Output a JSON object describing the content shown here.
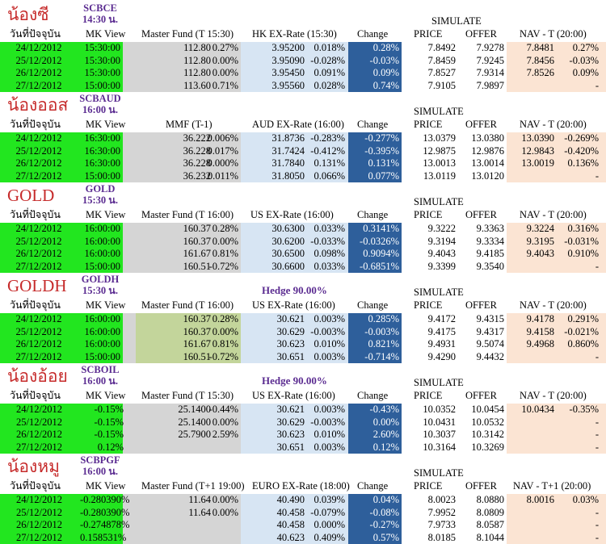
{
  "page_title_top": "SCBCE",
  "sections": [
    {
      "title": "น้องซี",
      "code": "SCBCE",
      "time": "14:30 น.",
      "hedge": "",
      "simulate": "SIMULATE",
      "headers": {
        "date": "วันที่ปัจจุบัน",
        "mk": "MK View",
        "fund": "Master Fund (T 15:30)",
        "fx": "HK EX-Rate (15:30)",
        "change": "Change",
        "price": "PRICE",
        "offer": "OFFER",
        "nav": "NAV - T (20:00)"
      },
      "rows": [
        {
          "date": "24/12/2012",
          "mk": "15:30:00",
          "fund": "112.80",
          "fund_pct": "0.27%",
          "fx": "3.95200",
          "fx_pct": "0.018%",
          "change": "0.28%",
          "price": "7.8492",
          "offer": "7.9278",
          "nav": "7.8481",
          "nav_pct": "0.27%"
        },
        {
          "date": "25/12/2012",
          "mk": "15:30:00",
          "fund": "112.80",
          "fund_pct": "0.00%",
          "fx": "3.95090",
          "fx_pct": "-0.028%",
          "change": "-0.03%",
          "price": "7.8459",
          "offer": "7.9245",
          "nav": "7.8456",
          "nav_pct": "-0.03%"
        },
        {
          "date": "26/12/2012",
          "mk": "15:30:00",
          "fund": "112.80",
          "fund_pct": "0.00%",
          "fx": "3.95450",
          "fx_pct": "0.091%",
          "change": "0.09%",
          "price": "7.8527",
          "offer": "7.9314",
          "nav": "7.8526",
          "nav_pct": "0.09%"
        },
        {
          "date": "27/12/2012",
          "mk": "15:00:00",
          "fund": "113.60",
          "fund_pct": "0.71%",
          "fx": "3.95560",
          "fx_pct": "0.028%",
          "change": "0.74%",
          "price": "7.9105",
          "offer": "7.9897",
          "nav": "",
          "nav_pct": "-"
        }
      ]
    },
    {
      "title": "น้องออส",
      "code": "SCBAUD",
      "time": "16:00 น.",
      "hedge": "",
      "simulate": "SIMULATE",
      "headers": {
        "date": "วันที่ปัจจุบัน",
        "mk": "MK View",
        "fund": "MMF (T-1)",
        "fx": "AUD EX-Rate (16:00)",
        "change": "Change",
        "price": "PRICE",
        "offer": "OFFER",
        "nav": "NAV - T (20:00)"
      },
      "rows": [
        {
          "date": "24/12/2012",
          "mk": "16:30:00",
          "fund": "36.222",
          "fund_pct": "0.006%",
          "fx": "31.8736",
          "fx_pct": "-0.283%",
          "change": "-0.277%",
          "price": "13.0379",
          "offer": "13.0380",
          "nav": "13.0390",
          "nav_pct": "-0.269%"
        },
        {
          "date": "25/12/2012",
          "mk": "16:30:00",
          "fund": "36.228",
          "fund_pct": "0.017%",
          "fx": "31.7424",
          "fx_pct": "-0.412%",
          "change": "-0.395%",
          "price": "12.9875",
          "offer": "12.9876",
          "nav": "12.9843",
          "nav_pct": "-0.420%"
        },
        {
          "date": "26/12/2012",
          "mk": "16:30:00",
          "fund": "36.228",
          "fund_pct": "0.000%",
          "fx": "31.7840",
          "fx_pct": "0.131%",
          "change": "0.131%",
          "price": "13.0013",
          "offer": "13.0014",
          "nav": "13.0019",
          "nav_pct": "0.136%"
        },
        {
          "date": "27/12/2012",
          "mk": "15:00:00",
          "fund": "36.232",
          "fund_pct": "0.011%",
          "fx": "31.8050",
          "fx_pct": "0.066%",
          "change": "0.077%",
          "price": "13.0119",
          "offer": "13.0120",
          "nav": "",
          "nav_pct": "-"
        }
      ]
    },
    {
      "title": "GOLD",
      "code": "GOLD",
      "time": "15:30 น.",
      "hedge": "",
      "simulate": "SIMULATE",
      "headers": {
        "date": "วันที่ปัจจุบัน",
        "mk": "MK View",
        "fund": "Master Fund (T 16:00)",
        "fx": "US EX-Rate (16:00)",
        "change": "Change",
        "price": "PRICE",
        "offer": "OFFER",
        "nav": "NAV - T (20:00)"
      },
      "rows": [
        {
          "date": "24/12/2012",
          "mk": "16:00:00",
          "fund": "160.37",
          "fund_pct": "0.28%",
          "fx": "30.6300",
          "fx_pct": "0.033%",
          "change": "0.3141%",
          "price": "9.3222",
          "offer": "9.3363",
          "nav": "9.3224",
          "nav_pct": "0.316%"
        },
        {
          "date": "25/12/2012",
          "mk": "16:00:00",
          "fund": "160.37",
          "fund_pct": "0.00%",
          "fx": "30.6200",
          "fx_pct": "-0.033%",
          "change": "-0.0326%",
          "price": "9.3194",
          "offer": "9.3334",
          "nav": "9.3195",
          "nav_pct": "-0.031%"
        },
        {
          "date": "26/12/2012",
          "mk": "16:00:00",
          "fund": "161.67",
          "fund_pct": "0.81%",
          "fx": "30.6500",
          "fx_pct": "0.098%",
          "change": "0.9094%",
          "price": "9.4043",
          "offer": "9.4185",
          "nav": "9.4043",
          "nav_pct": "0.910%"
        },
        {
          "date": "27/12/2012",
          "mk": "15:00:00",
          "fund": "160.51",
          "fund_pct": "-0.72%",
          "fx": "30.6600",
          "fx_pct": "0.033%",
          "change": "-0.6851%",
          "price": "9.3399",
          "offer": "9.3540",
          "nav": "",
          "nav_pct": "-"
        }
      ]
    },
    {
      "title": "GOLDH",
      "code": "GOLDH",
      "time": "15:30 น.",
      "hedge": "Hedge 90.00%",
      "simulate": "SIMULATE",
      "headers": {
        "date": "วันที่ปัจจุบัน",
        "mk": "MK View",
        "fund": "Master Fund (T 16:00)",
        "fx": "US EX-Rate (16:00)",
        "change": "Change",
        "price": "PRICE",
        "offer": "OFFER",
        "nav": "NAV - T (20:00)"
      },
      "rows": [
        {
          "date": "24/12/2012",
          "mk": "16:00:00",
          "fund": "160.37",
          "fund_pct": "0.28%",
          "fx": "30.621",
          "fx_pct": "0.003%",
          "change": "0.285%",
          "price": "9.4172",
          "offer": "9.4315",
          "nav": "9.4178",
          "nav_pct": "0.291%"
        },
        {
          "date": "25/12/2012",
          "mk": "16:00:00",
          "fund": "160.37",
          "fund_pct": "0.00%",
          "fx": "30.629",
          "fx_pct": "-0.003%",
          "change": "-0.003%",
          "price": "9.4175",
          "offer": "9.4317",
          "nav": "9.4158",
          "nav_pct": "-0.021%"
        },
        {
          "date": "26/12/2012",
          "mk": "16:00:00",
          "fund": "161.67",
          "fund_pct": "0.81%",
          "fx": "30.623",
          "fx_pct": "0.010%",
          "change": "0.821%",
          "price": "9.4931",
          "offer": "9.5074",
          "nav": "9.4968",
          "nav_pct": "0.860%"
        },
        {
          "date": "27/12/2012",
          "mk": "15:00:00",
          "fund": "160.51",
          "fund_pct": "-0.72%",
          "fx": "30.651",
          "fx_pct": "0.003%",
          "change": "-0.714%",
          "price": "9.4290",
          "offer": "9.4432",
          "nav": "",
          "nav_pct": "-"
        }
      ]
    },
    {
      "title": "น้องอ้อย",
      "code": "SCBOIL",
      "time": "16:00 น.",
      "hedge": "Hedge 90.00%",
      "simulate": "SIMULATE",
      "headers": {
        "date": "วันที่ปัจจุบัน",
        "mk": "MK View",
        "fund": "Master Fund (T 15:30)",
        "fx": "US EX-Rate (16:00)",
        "change": "Change",
        "price": "PRICE",
        "offer": "OFFER",
        "nav": "NAV - T (20:00)"
      },
      "rows": [
        {
          "date": "24/12/2012",
          "mk": "-0.15%",
          "fund": "25.1400",
          "fund_pct": "-0.44%",
          "fx": "30.621",
          "fx_pct": "0.003%",
          "change": "-0.43%",
          "price": "10.0352",
          "offer": "10.0454",
          "nav": "10.0434",
          "nav_pct": "-0.35%"
        },
        {
          "date": "25/12/2012",
          "mk": "-0.15%",
          "fund": "25.1400",
          "fund_pct": "0.00%",
          "fx": "30.629",
          "fx_pct": "-0.003%",
          "change": "0.00%",
          "price": "10.0431",
          "offer": "10.0532",
          "nav": "",
          "nav_pct": "-"
        },
        {
          "date": "26/12/2012",
          "mk": "-0.15%",
          "fund": "25.7900",
          "fund_pct": "2.59%",
          "fx": "30.623",
          "fx_pct": "0.010%",
          "change": "2.60%",
          "price": "10.3037",
          "offer": "10.3142",
          "nav": "",
          "nav_pct": "-"
        },
        {
          "date": "27/12/2012",
          "mk": "0.12%",
          "fund": "",
          "fund_pct": "",
          "fx": "30.651",
          "fx_pct": "0.003%",
          "change": "0.12%",
          "price": "10.3164",
          "offer": "10.3269",
          "nav": "",
          "nav_pct": "-"
        }
      ]
    },
    {
      "title": "น้องหมู",
      "code": "SCBPGF",
      "time": "16:00 น.",
      "hedge": "",
      "simulate": "SIMULATE",
      "headers": {
        "date": "วันที่ปัจจุบัน",
        "mk": "MK View",
        "fund": "Master Fund (T+1 19:00)",
        "fx": "EURO EX-Rate (18:00)",
        "change": "Change",
        "price": "PRICE",
        "offer": "OFFER",
        "nav": "NAV - T+1 (20:00)"
      },
      "rows": [
        {
          "date": "24/12/2012",
          "mk": "-0.280390%",
          "fund": "11.64",
          "fund_pct": "0.00%",
          "fx": "40.490",
          "fx_pct": "0.039%",
          "change": "0.04%",
          "price": "8.0023",
          "offer": "8.0880",
          "nav": "8.0016",
          "nav_pct": "0.03%"
        },
        {
          "date": "25/12/2012",
          "mk": "-0.280390%",
          "fund": "11.64",
          "fund_pct": "0.00%",
          "fx": "40.458",
          "fx_pct": "-0.079%",
          "change": "-0.08%",
          "price": "7.9952",
          "offer": "8.0809",
          "nav": "",
          "nav_pct": "-"
        },
        {
          "date": "26/12/2012",
          "mk": "-0.274878%",
          "fund": "",
          "fund_pct": "",
          "fx": "40.458",
          "fx_pct": "0.000%",
          "change": "-0.27%",
          "price": "7.9733",
          "offer": "8.0587",
          "nav": "",
          "nav_pct": "-"
        },
        {
          "date": "27/12/2012",
          "mk": "0.158531%",
          "fund": "",
          "fund_pct": "",
          "fx": "40.623",
          "fx_pct": "0.409%",
          "change": "0.57%",
          "price": "8.0185",
          "offer": "8.1044",
          "nav": "",
          "nav_pct": "-"
        }
      ]
    }
  ],
  "colors": {
    "green": "#22e61f",
    "gray": "#d5d5d5",
    "olive": "#c3d59b",
    "light_blue": "#d7e5f3",
    "dark_blue": "#2e5f9b",
    "peach": "#fbe4d3",
    "title_red": "#c62b2b",
    "code_purple": "#5b2c91"
  }
}
